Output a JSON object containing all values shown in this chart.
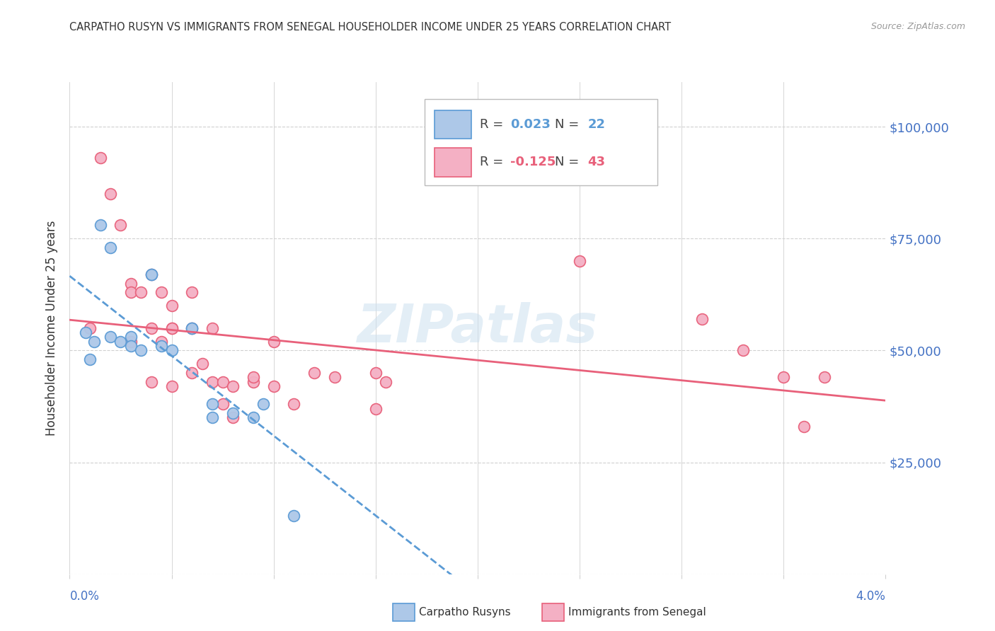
{
  "title": "CARPATHO RUSYN VS IMMIGRANTS FROM SENEGAL HOUSEHOLDER INCOME UNDER 25 YEARS CORRELATION CHART",
  "source": "Source: ZipAtlas.com",
  "ylabel": "Householder Income Under 25 years",
  "xlim": [
    0.0,
    0.04
  ],
  "ylim": [
    0,
    110000
  ],
  "yticks": [
    0,
    25000,
    50000,
    75000,
    100000
  ],
  "ytick_labels": [
    "",
    "$25,000",
    "$50,000",
    "$75,000",
    "$100,000"
  ],
  "xtick_positions": [
    0.0,
    0.005,
    0.01,
    0.015,
    0.02,
    0.025,
    0.03,
    0.035,
    0.04
  ],
  "background_color": "#ffffff",
  "watermark": "ZIPatlas",
  "blue_R": "0.023",
  "blue_N": "22",
  "pink_R": "-0.125",
  "pink_N": "43",
  "blue_scatter_x": [
    0.0008,
    0.001,
    0.0012,
    0.0015,
    0.002,
    0.002,
    0.0025,
    0.003,
    0.003,
    0.0035,
    0.004,
    0.004,
    0.0045,
    0.005,
    0.006,
    0.006,
    0.007,
    0.007,
    0.008,
    0.009,
    0.0095,
    0.011
  ],
  "blue_scatter_y": [
    54000,
    48000,
    52000,
    78000,
    73000,
    53000,
    52000,
    53000,
    51000,
    50000,
    67000,
    67000,
    51000,
    50000,
    55000,
    55000,
    38000,
    35000,
    36000,
    35000,
    38000,
    13000
  ],
  "pink_scatter_x": [
    0.001,
    0.0015,
    0.002,
    0.0025,
    0.003,
    0.003,
    0.003,
    0.0035,
    0.004,
    0.004,
    0.004,
    0.0045,
    0.0045,
    0.005,
    0.005,
    0.005,
    0.005,
    0.006,
    0.006,
    0.006,
    0.0065,
    0.007,
    0.007,
    0.0075,
    0.0075,
    0.008,
    0.008,
    0.009,
    0.009,
    0.01,
    0.01,
    0.011,
    0.012,
    0.013,
    0.015,
    0.015,
    0.0155,
    0.025,
    0.031,
    0.033,
    0.035,
    0.036,
    0.037
  ],
  "pink_scatter_y": [
    55000,
    93000,
    85000,
    78000,
    65000,
    63000,
    52000,
    63000,
    55000,
    43000,
    67000,
    63000,
    52000,
    60000,
    55000,
    55000,
    42000,
    63000,
    55000,
    45000,
    47000,
    55000,
    43000,
    43000,
    38000,
    42000,
    35000,
    43000,
    44000,
    52000,
    42000,
    38000,
    45000,
    44000,
    37000,
    45000,
    43000,
    70000,
    57000,
    50000,
    44000,
    33000,
    44000
  ],
  "blue_line_color": "#5b9bd5",
  "pink_line_color": "#e8607a",
  "blue_scatter_color": "#adc8e8",
  "pink_scatter_color": "#f4b0c4",
  "grid_color": "#d0d0d0",
  "ytick_color": "#4472c4",
  "title_color": "#333333",
  "source_color": "#999999",
  "legend_border_color": "#bbbbbb"
}
